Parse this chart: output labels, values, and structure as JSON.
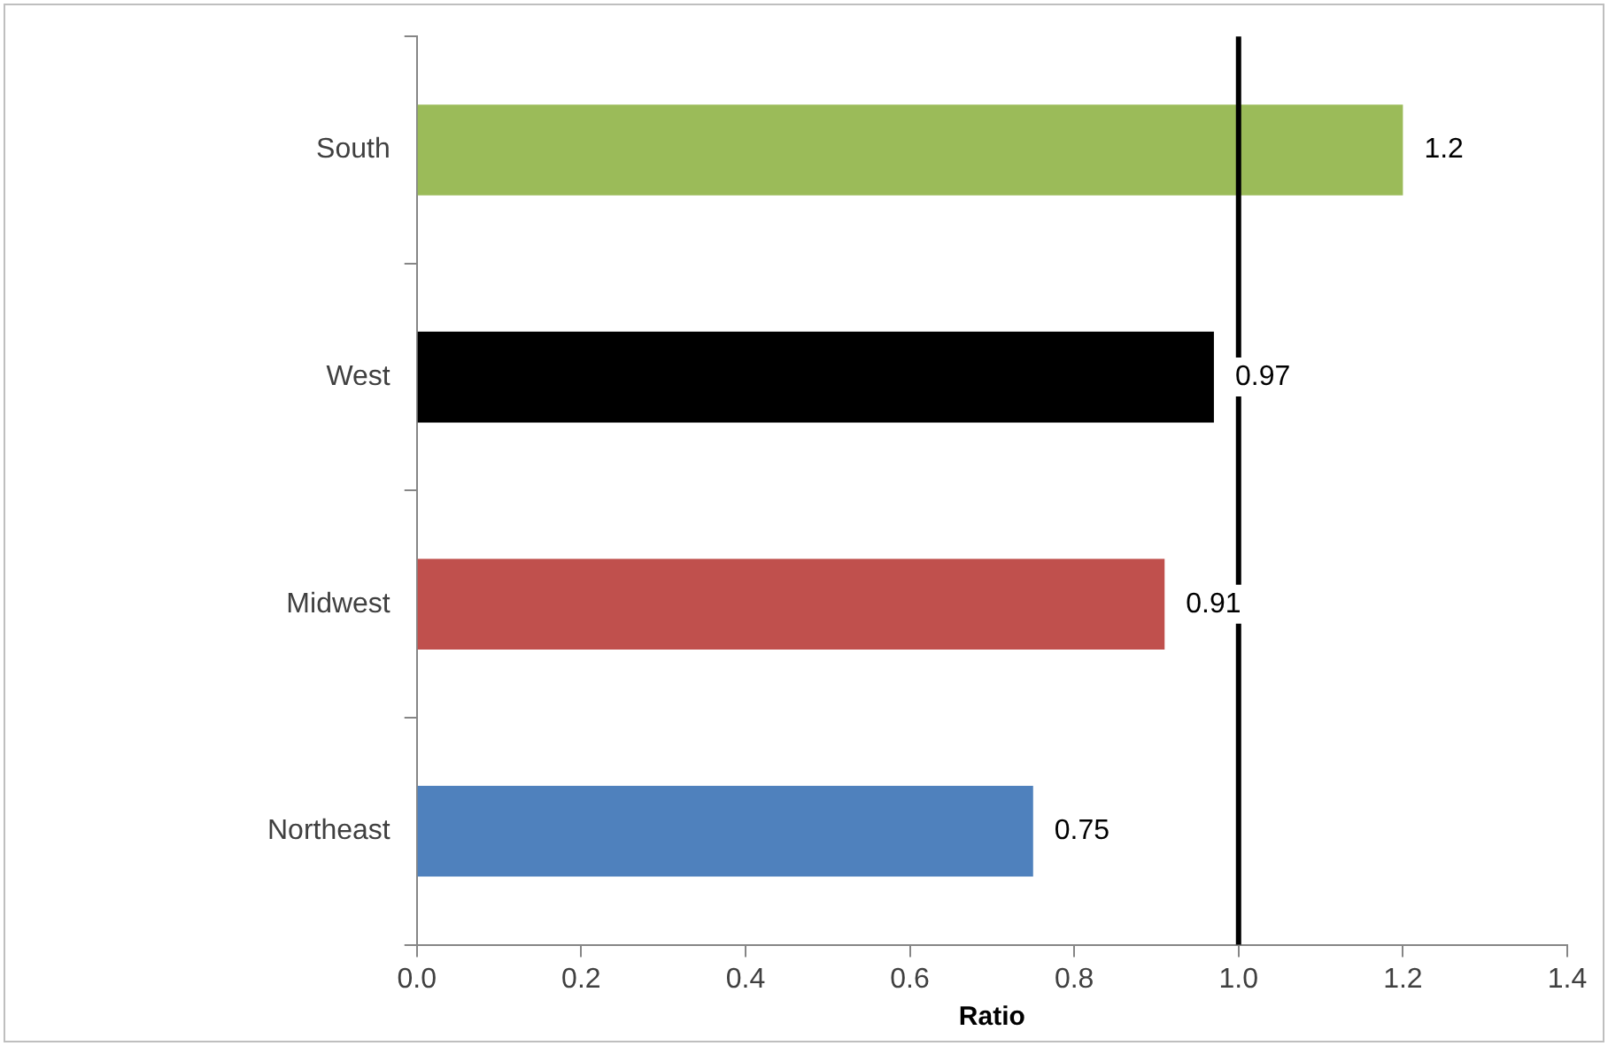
{
  "chart_data": {
    "type": "bar",
    "orientation": "horizontal",
    "xlabel": "Ratio",
    "categories": [
      "South",
      "West",
      "Midwest",
      "Northeast"
    ],
    "values": [
      1.2,
      0.97,
      0.91,
      0.75
    ],
    "colors": [
      "#9bbb59",
      "#000000",
      "#c0504d",
      "#4f81bd"
    ],
    "xlim": [
      0,
      1.4
    ],
    "xticks": [
      {
        "value": 0,
        "label": "0.0"
      },
      {
        "value": 0.2,
        "label": "0.2"
      },
      {
        "value": 0.4,
        "label": "0.4"
      },
      {
        "value": 0.6,
        "label": "0.6"
      },
      {
        "value": 0.8,
        "label": "0.8"
      },
      {
        "value": 1,
        "label": "1.0"
      },
      {
        "value": 1.2,
        "label": "1.2"
      },
      {
        "value": 1.4,
        "label": "1.4"
      }
    ],
    "ref_lines": [
      {
        "axis": "x",
        "value": 1,
        "color": "#000000"
      }
    ],
    "data_labels": true,
    "grid": false,
    "legend": false
  }
}
